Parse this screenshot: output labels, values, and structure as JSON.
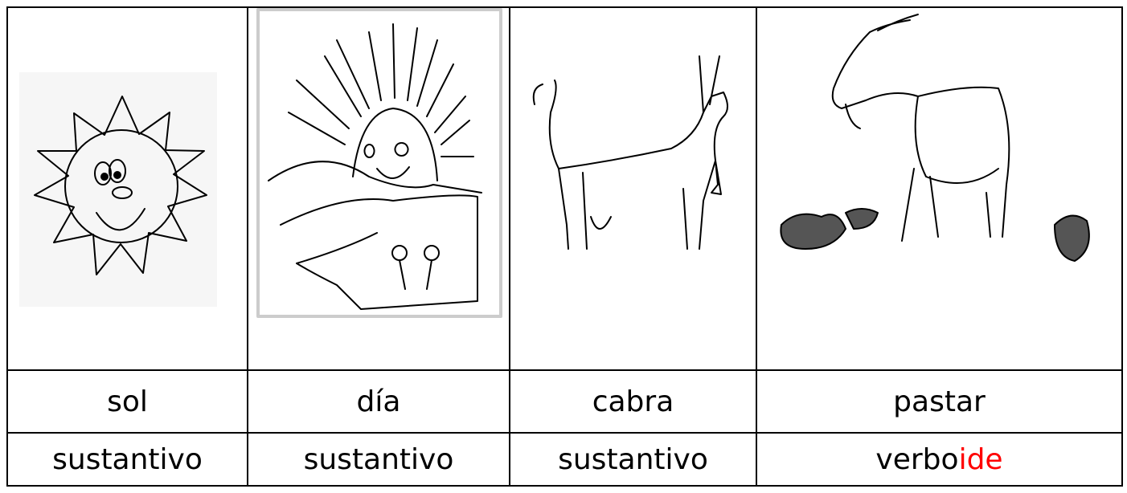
{
  "table": {
    "cells": [
      {
        "word": "sol",
        "type": "sustantivo"
      },
      {
        "word": "día",
        "type": "sustantivo"
      },
      {
        "word": "cabra",
        "type": "sustantivo"
      },
      {
        "word": "pastar",
        "type": "verbo",
        "type_suffix": "ide",
        "suffix_color": "#ff0000"
      }
    ]
  }
}
